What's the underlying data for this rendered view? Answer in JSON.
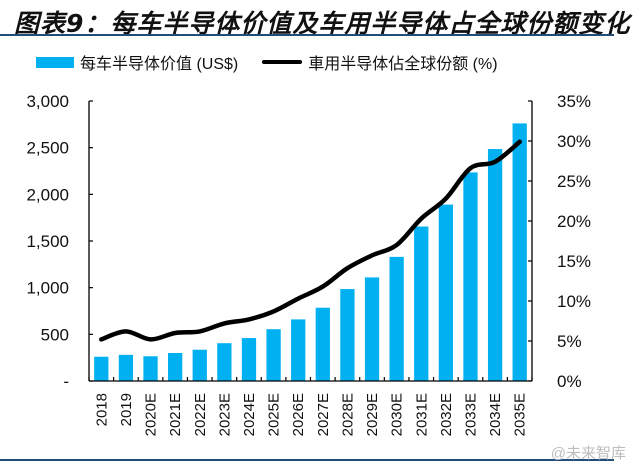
{
  "header": {
    "title": "图表9：每车半导体价值及车用半导体占全球份额变化"
  },
  "watermark": "@未来智库",
  "colors": {
    "bar": "#00b0f0",
    "line": "#000000",
    "rule": "#1f4e79"
  },
  "chart_data": {
    "type": "bar",
    "title": "图表9：每车半导体价值及车用半导体占全球份额变化",
    "categories": [
      "2018",
      "2019",
      "2020E",
      "2021E",
      "2022E",
      "2023E",
      "2024E",
      "2025E",
      "2026E",
      "2027E",
      "2028E",
      "2029E",
      "2030E",
      "2031E",
      "2032E",
      "2033E",
      "2034E",
      "2035E"
    ],
    "series": [
      {
        "name": "每车半导体价值 (US$)",
        "type": "bar",
        "axis": "left",
        "values": [
          260,
          280,
          265,
          300,
          335,
          405,
          460,
          555,
          660,
          785,
          985,
          1110,
          1330,
          1655,
          1890,
          2235,
          2485,
          2760
        ]
      },
      {
        "name": "車用半导体佔全球份额 (%)",
        "type": "line",
        "axis": "right",
        "values": [
          5.2,
          6.2,
          5.2,
          6.0,
          6.2,
          7.2,
          7.7,
          8.7,
          10.3,
          11.8,
          14.1,
          15.7,
          17.0,
          20.3,
          22.8,
          26.6,
          27.4,
          29.9
        ]
      }
    ],
    "y_left": {
      "ylim": [
        0,
        3000
      ],
      "ticks": [
        0,
        500,
        1000,
        1500,
        2000,
        2500,
        3000
      ],
      "tick_labels": [
        "-",
        "500",
        "1,000",
        "1,500",
        "2,000",
        "2,500",
        "3,000"
      ]
    },
    "y_right": {
      "ylim": [
        0,
        35
      ],
      "ticks": [
        0,
        5,
        10,
        15,
        20,
        25,
        30,
        35
      ],
      "tick_labels": [
        "0%",
        "5%",
        "10%",
        "15%",
        "20%",
        "25%",
        "30%",
        "35%"
      ]
    },
    "legend_position": "top",
    "grid": false,
    "xlabel": "",
    "ylabel": ""
  }
}
